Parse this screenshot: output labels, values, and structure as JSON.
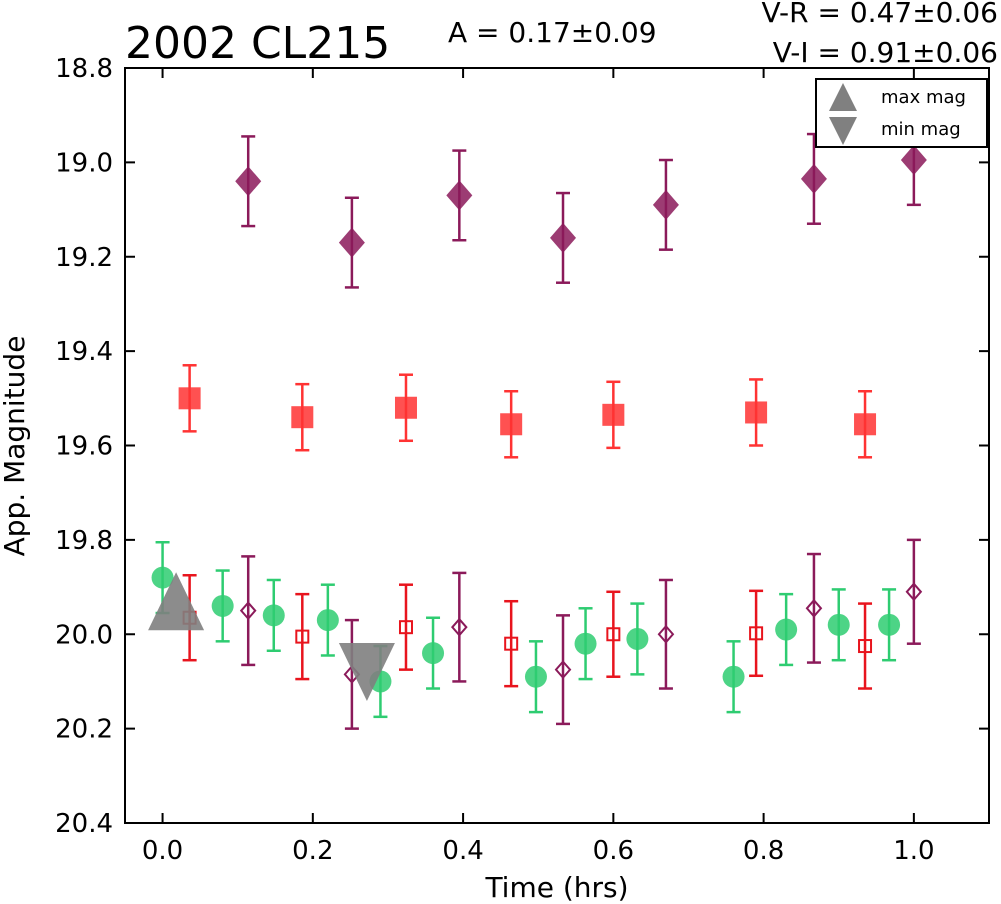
{
  "chart_data": {
    "type": "scatter",
    "title": "2002 CL215",
    "amplitude_text": "A  = 0.17±0.09",
    "color_text_vr": "V-R = 0.47±0.06",
    "color_text_vi": "V-I  = 0.91±0.06",
    "xlabel": "Time (hrs)",
    "ylabel": "App. Magnitude",
    "xlim": [
      -0.05,
      1.1
    ],
    "ylim": [
      20.4,
      18.8
    ],
    "y_inverted": true,
    "xticks": [
      "0.0",
      "0.2",
      "0.4",
      "0.6",
      "0.8",
      "1.0"
    ],
    "xtick_values": [
      0.0,
      0.2,
      0.4,
      0.6,
      0.8,
      1.0
    ],
    "yticks": [
      "18.8",
      "19.0",
      "19.2",
      "19.4",
      "19.6",
      "19.8",
      "20.0",
      "20.2",
      "20.4"
    ],
    "ytick_values": [
      18.8,
      19.0,
      19.2,
      19.4,
      19.6,
      19.8,
      20.0,
      20.2,
      20.4
    ],
    "grid": false,
    "legend_position": "top-right",
    "legend": [
      {
        "label": "max mag",
        "marker": "triangle-up",
        "color": "#808080"
      },
      {
        "label": "min mag",
        "marker": "triangle-down",
        "color": "#808080"
      }
    ],
    "series": [
      {
        "marker": "circle",
        "color": "#2ecc71",
        "filled": true,
        "points": [
          {
            "x": 0.0,
            "y": 19.88,
            "err": 0.075
          },
          {
            "x": 0.08,
            "y": 19.94,
            "err": 0.075
          },
          {
            "x": 0.148,
            "y": 19.96,
            "err": 0.075
          },
          {
            "x": 0.22,
            "y": 19.97,
            "err": 0.075
          },
          {
            "x": 0.29,
            "y": 20.1,
            "err": 0.075
          },
          {
            "x": 0.36,
            "y": 20.04,
            "err": 0.075
          },
          {
            "x": 0.497,
            "y": 20.09,
            "err": 0.075
          },
          {
            "x": 0.563,
            "y": 20.02,
            "err": 0.075
          },
          {
            "x": 0.632,
            "y": 20.01,
            "err": 0.075
          },
          {
            "x": 0.76,
            "y": 20.09,
            "err": 0.075
          },
          {
            "x": 0.83,
            "y": 19.99,
            "err": 0.075
          },
          {
            "x": 0.9,
            "y": 19.98,
            "err": 0.075
          },
          {
            "x": 0.967,
            "y": 19.98,
            "err": 0.075
          }
        ]
      },
      {
        "marker": "square",
        "color": "#ff3333",
        "filled": true,
        "points": [
          {
            "x": 0.036,
            "y": 19.5,
            "err": 0.07
          },
          {
            "x": 0.186,
            "y": 19.54,
            "err": 0.07
          },
          {
            "x": 0.324,
            "y": 19.52,
            "err": 0.07
          },
          {
            "x": 0.464,
            "y": 19.555,
            "err": 0.07
          },
          {
            "x": 0.6,
            "y": 19.535,
            "err": 0.07
          },
          {
            "x": 0.79,
            "y": 19.53,
            "err": 0.07
          },
          {
            "x": 0.935,
            "y": 19.555,
            "err": 0.07
          }
        ]
      },
      {
        "marker": "square",
        "color": "#e8141d",
        "filled": false,
        "points": [
          {
            "x": 0.036,
            "y": 19.965,
            "err": 0.09
          },
          {
            "x": 0.186,
            "y": 20.005,
            "err": 0.09
          },
          {
            "x": 0.324,
            "y": 19.985,
            "err": 0.09
          },
          {
            "x": 0.464,
            "y": 20.02,
            "err": 0.09
          },
          {
            "x": 0.6,
            "y": 20.0,
            "err": 0.09
          },
          {
            "x": 0.79,
            "y": 19.998,
            "err": 0.09
          },
          {
            "x": 0.935,
            "y": 20.025,
            "err": 0.09
          }
        ]
      },
      {
        "marker": "diamond",
        "color": "#8b1a5a",
        "filled": true,
        "points": [
          {
            "x": 0.114,
            "y": 19.04,
            "err": 0.095
          },
          {
            "x": 0.252,
            "y": 19.17,
            "err": 0.095
          },
          {
            "x": 0.395,
            "y": 19.07,
            "err": 0.095
          },
          {
            "x": 0.533,
            "y": 19.16,
            "err": 0.095
          },
          {
            "x": 0.67,
            "y": 19.09,
            "err": 0.095
          },
          {
            "x": 0.867,
            "y": 19.035,
            "err": 0.095
          },
          {
            "x": 1.0,
            "y": 18.995,
            "err": 0.095
          }
        ]
      },
      {
        "marker": "diamond",
        "color": "#8b1a5a",
        "filled": false,
        "points": [
          {
            "x": 0.114,
            "y": 19.95,
            "err": 0.115
          },
          {
            "x": 0.252,
            "y": 20.085,
            "err": 0.115
          },
          {
            "x": 0.395,
            "y": 19.985,
            "err": 0.115
          },
          {
            "x": 0.533,
            "y": 20.075,
            "err": 0.115
          },
          {
            "x": 0.67,
            "y": 20.0,
            "err": 0.115
          },
          {
            "x": 0.867,
            "y": 19.945,
            "err": 0.115
          },
          {
            "x": 1.0,
            "y": 19.91,
            "err": 0.11
          }
        ]
      }
    ],
    "extrema": [
      {
        "kind": "max",
        "marker": "triangle-up",
        "color": "#808080",
        "x": 0.018,
        "y": 19.93
      },
      {
        "kind": "min",
        "marker": "triangle-down",
        "color": "#808080",
        "x": 0.272,
        "y": 20.08
      }
    ]
  }
}
